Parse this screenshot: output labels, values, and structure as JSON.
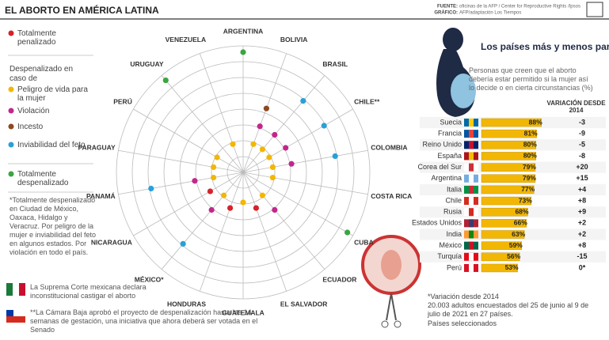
{
  "header": {
    "title": "EL ABORTO EN AMÉRICA LATINA",
    "source_label": "FUENTE:",
    "source": "oficinas de la AFP / Center for Reproductive Rights /Ipsos",
    "graphic_label": "GRÁFICO:",
    "graphic": "AFP/adaptación Los Tiempos"
  },
  "chart_data": [
    {
      "type": "radial-status",
      "legend_header": "Despenalizado en caso de",
      "legend": [
        {
          "label": "Totalmente penalizado",
          "color": "#d6232a"
        },
        {
          "label": "Peligro de vida para la mujer",
          "color": "#f2b705"
        },
        {
          "label": "Violación",
          "color": "#c2278b"
        },
        {
          "label": "Incesto",
          "color": "#8b4a1f"
        },
        {
          "label": "Inviabilidad del feto",
          "color": "#2aa0d8"
        },
        {
          "label": "Totalmente despenalizado",
          "color": "#3aa541"
        }
      ],
      "countries": [
        {
          "name": "ARGENTINA",
          "statuses": [
            5
          ]
        },
        {
          "name": "BOLIVIA",
          "statuses": [
            1,
            2,
            3
          ]
        },
        {
          "name": "BRASIL",
          "statuses": [
            1,
            2,
            4
          ]
        },
        {
          "name": "CHILE**",
          "statuses": [
            1,
            2,
            4
          ]
        },
        {
          "name": "COLOMBIA",
          "statuses": [
            1,
            2,
            4
          ]
        },
        {
          "name": "COSTA RICA",
          "statuses": [
            1
          ]
        },
        {
          "name": "CUBA",
          "statuses": [
            5
          ]
        },
        {
          "name": "ECUADOR",
          "statuses": [
            1,
            2
          ]
        },
        {
          "name": "EL SALVADOR",
          "statuses": [
            0
          ]
        },
        {
          "name": "GUATEMALA",
          "statuses": [
            1
          ]
        },
        {
          "name": "HONDURAS",
          "statuses": [
            0
          ]
        },
        {
          "name": "MÉXICO*",
          "statuses": [
            1,
            2,
            4
          ]
        },
        {
          "name": "NICARAGUA",
          "statuses": [
            0
          ]
        },
        {
          "name": "PANAMÁ",
          "statuses": [
            1,
            2,
            4
          ]
        },
        {
          "name": "PARAGUAY",
          "statuses": [
            1
          ]
        },
        {
          "name": "PERÚ",
          "statuses": [
            1
          ]
        },
        {
          "name": "URUGUAY",
          "statuses": [
            5
          ]
        },
        {
          "name": "VENEZUELA",
          "statuses": [
            1
          ]
        }
      ]
    },
    {
      "type": "bar",
      "title": "Los países más y menos partidarios del aborto",
      "subtitle": "Personas que creen que el aborto debería estar permitido si la mujer así lo decide o en cierta circunstancias (%)",
      "variation_header": "VARIACIÓN DESDE 2014",
      "color": "#f2b705",
      "categories": [
        "Suecia",
        "Francia",
        "Reino Unido",
        "España",
        "Corea del Sur",
        "Argentina",
        "Italia",
        "Chile",
        "Rusia",
        "Estados Unidos",
        "India",
        "México",
        "Turquía",
        "Perú"
      ],
      "values": [
        88,
        81,
        80,
        80,
        79,
        79,
        77,
        73,
        68,
        66,
        63,
        59,
        56,
        53
      ],
      "value_labels": [
        "88%",
        "81%",
        "80%",
        "80%",
        "79%",
        "79%",
        "77%",
        "73%",
        "68%",
        "66%",
        "63%",
        "59%",
        "56%",
        "53%"
      ],
      "variation": [
        "-3",
        "-9",
        "-5",
        "-8",
        "+20",
        "+15",
        "+4",
        "+8",
        "+9",
        "+2",
        "+2",
        "+8",
        "-15",
        "0*"
      ]
    }
  ],
  "notes": {
    "mexico_detail": "*Totalmente despenalizado en Ciudad de México, Oaxaca, Hidalgo y Veracruz. Por peligro de la mujer e inviabilidad del feto en algunos estados. Por violación en todo el país.",
    "mexico_court": "La Suprema Corte mexicana declara inconstitucional castigar el aborto",
    "chile": "**La Cámara Baja aprobó el proyecto de despenalización hasta las 14 semanas de gestación, una iniciativa que ahora deberá ser votada en el Senado",
    "variation_note": "*Variación desde 2014",
    "survey": "20.003 adultos encuestados del 25 de junio al 9 de julio de 2021 en 27 países.",
    "selection": "Países seleccionados"
  }
}
